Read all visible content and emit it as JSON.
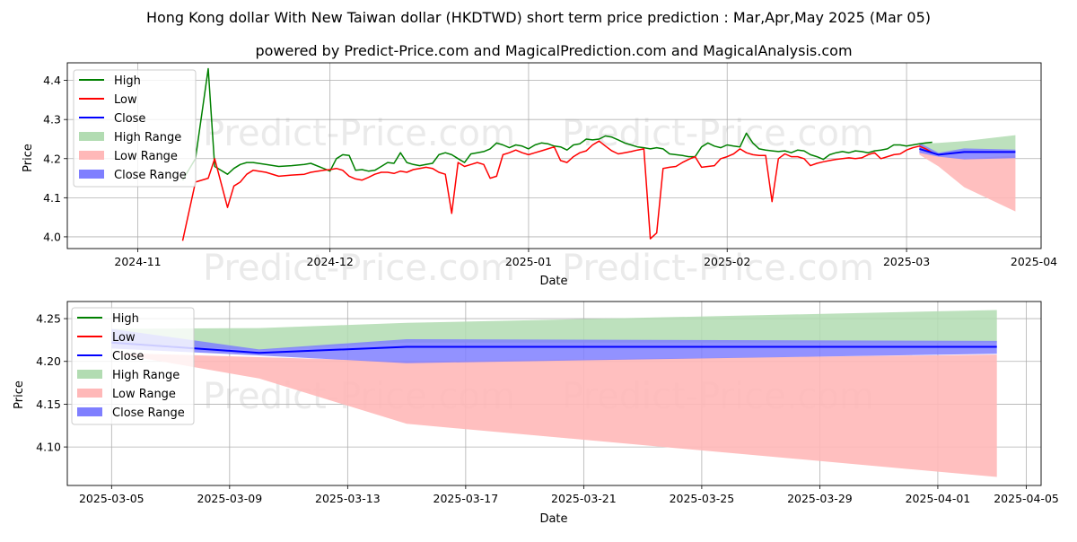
{
  "title": "Hong Kong dollar With New Taiwan dollar (HKDTWD) short term price prediction : Mar,Apr,May 2025 (Mar 05)",
  "subtitle": "powered by Predict-Price.com and MagicalPrediction.com and MagicalAnalysis.com",
  "watermark": "Predict-Price.com",
  "colors": {
    "high": "#008000",
    "low": "#ff0000",
    "close": "#0000ff",
    "high_range": "#b2dcb2",
    "low_range": "#ffb8b8",
    "close_range": "#7f7fff",
    "grid": "#b0b0b0"
  },
  "legend": [
    "High",
    "Low",
    "Close",
    "High Range",
    "Low Range",
    "Close Range"
  ],
  "chart_data": [
    {
      "type": "line",
      "name": "history-chart",
      "xlabel": "Date",
      "ylabel": "Price",
      "xlim": [
        -11,
        141
      ],
      "ylim": [
        3.97,
        4.445
      ],
      "x_ticks": [
        {
          "day": 0,
          "label": "2024-11"
        },
        {
          "day": 30,
          "label": "2024-12"
        },
        {
          "day": 61,
          "label": "2025-01"
        },
        {
          "day": 92,
          "label": "2025-02"
        },
        {
          "day": 120,
          "label": "2025-03"
        },
        {
          "day": 151,
          "label": "2025-04"
        }
      ],
      "y_ticks": [
        4.0,
        4.1,
        4.2,
        4.3,
        4.4
      ],
      "high": {
        "x": [
          7,
          9,
          11,
          12,
          14,
          15,
          16,
          17,
          18,
          20,
          22,
          24,
          26,
          27,
          29,
          30,
          31,
          32,
          33,
          34,
          35,
          36,
          37,
          38,
          39,
          40,
          41,
          42,
          43,
          44,
          45,
          46,
          47,
          48,
          49,
          50,
          51,
          52,
          53,
          54,
          55,
          56,
          57,
          58,
          59,
          60,
          61,
          62,
          63,
          64,
          65,
          66,
          67,
          68,
          69,
          70,
          71,
          72,
          73,
          74,
          75,
          76,
          77,
          78,
          79,
          80,
          81,
          82,
          83,
          84,
          85,
          86,
          87,
          88,
          89,
          90,
          91,
          92,
          93,
          94,
          95,
          96,
          97,
          98,
          99,
          100,
          101,
          102,
          103,
          104,
          105,
          106,
          107,
          108,
          109,
          110,
          111,
          112,
          113,
          114,
          115,
          116,
          117,
          118,
          119,
          120,
          121,
          122,
          123,
          124
        ],
        "y": [
          4.145,
          4.2,
          4.43,
          4.18,
          4.16,
          4.175,
          4.185,
          4.19,
          4.19,
          4.185,
          4.18,
          4.182,
          4.185,
          4.188,
          4.175,
          4.168,
          4.2,
          4.21,
          4.208,
          4.17,
          4.172,
          4.168,
          4.17,
          4.18,
          4.19,
          4.188,
          4.215,
          4.19,
          4.185,
          4.182,
          4.185,
          4.188,
          4.21,
          4.215,
          4.21,
          4.2,
          4.19,
          4.212,
          4.215,
          4.218,
          4.225,
          4.24,
          4.235,
          4.228,
          4.235,
          4.232,
          4.225,
          4.235,
          4.24,
          4.238,
          4.232,
          4.23,
          4.222,
          4.235,
          4.238,
          4.25,
          4.248,
          4.25,
          4.258,
          4.255,
          4.248,
          4.24,
          4.235,
          4.23,
          4.228,
          4.225,
          4.228,
          4.225,
          4.212,
          4.21,
          4.208,
          4.205,
          4.205,
          4.23,
          4.24,
          4.232,
          4.228,
          4.235,
          4.232,
          4.23,
          4.265,
          4.24,
          4.225,
          4.222,
          4.22,
          4.218,
          4.22,
          4.215,
          4.222,
          4.22,
          4.21,
          4.205,
          4.198,
          4.21,
          4.215,
          4.218,
          4.215,
          4.22,
          4.218,
          4.215,
          4.22,
          4.222,
          4.225,
          4.235,
          4.235,
          4.232,
          4.235,
          4.238,
          4.24,
          4.242
        ]
      },
      "low": {
        "x": [
          7,
          9,
          11,
          12,
          14,
          15,
          16,
          17,
          18,
          20,
          22,
          24,
          26,
          27,
          29,
          30,
          31,
          32,
          33,
          34,
          35,
          36,
          37,
          38,
          39,
          40,
          41,
          42,
          43,
          44,
          45,
          46,
          47,
          48,
          49,
          50,
          51,
          52,
          53,
          54,
          55,
          56,
          57,
          58,
          59,
          60,
          61,
          62,
          63,
          64,
          65,
          66,
          67,
          68,
          69,
          70,
          71,
          72,
          73,
          74,
          75,
          76,
          77,
          78,
          79,
          80,
          81,
          82,
          83,
          84,
          85,
          86,
          87,
          88,
          89,
          90,
          91,
          92,
          93,
          94,
          95,
          96,
          97,
          98,
          99,
          100,
          101,
          102,
          103,
          104,
          105,
          106,
          107,
          108,
          109,
          110,
          111,
          112,
          113,
          114,
          115,
          116,
          117,
          118,
          119,
          120,
          121,
          122,
          123,
          124
        ],
        "y": [
          3.99,
          4.14,
          4.15,
          4.2,
          4.075,
          4.13,
          4.14,
          4.16,
          4.17,
          4.165,
          4.155,
          4.158,
          4.16,
          4.165,
          4.17,
          4.172,
          4.175,
          4.17,
          4.155,
          4.148,
          4.145,
          4.152,
          4.16,
          4.165,
          4.165,
          4.162,
          4.168,
          4.165,
          4.172,
          4.175,
          4.178,
          4.175,
          4.165,
          4.16,
          4.06,
          4.19,
          4.18,
          4.185,
          4.19,
          4.185,
          4.15,
          4.155,
          4.21,
          4.215,
          4.222,
          4.215,
          4.21,
          4.215,
          4.22,
          4.225,
          4.23,
          4.195,
          4.19,
          4.205,
          4.215,
          4.22,
          4.235,
          4.245,
          4.232,
          4.22,
          4.212,
          4.215,
          4.218,
          4.222,
          4.225,
          3.995,
          4.01,
          4.175,
          4.178,
          4.18,
          4.19,
          4.198,
          4.205,
          4.178,
          4.18,
          4.182,
          4.2,
          4.205,
          4.212,
          4.225,
          4.215,
          4.21,
          4.208,
          4.208,
          4.09,
          4.2,
          4.212,
          4.205,
          4.205,
          4.2,
          4.182,
          4.188,
          4.192,
          4.195,
          4.198,
          4.2,
          4.202,
          4.2,
          4.202,
          4.21,
          4.215,
          4.2,
          4.205,
          4.21,
          4.212,
          4.222,
          4.228,
          4.232,
          4.225,
          4.215
        ]
      },
      "close": {
        "x": [
          122,
          125,
          129,
          137
        ],
        "y": [
          4.225,
          4.21,
          4.217,
          4.217
        ]
      },
      "high_range": {
        "x": [
          122,
          125,
          129,
          137
        ],
        "upper": [
          4.238,
          4.24,
          4.245,
          4.26
        ],
        "lower": [
          4.225,
          4.212,
          4.22,
          4.222
        ]
      },
      "low_range": {
        "x": [
          122,
          125,
          129,
          137
        ],
        "upper": [
          4.218,
          4.205,
          4.2,
          4.208
        ],
        "lower": [
          4.21,
          4.18,
          4.127,
          4.065
        ]
      },
      "close_range": {
        "x": [
          122,
          125,
          129,
          137
        ],
        "upper": [
          4.24,
          4.215,
          4.226,
          4.223
        ],
        "lower": [
          4.215,
          4.205,
          4.198,
          4.201
        ]
      }
    },
    {
      "type": "line",
      "name": "forecast-chart",
      "xlabel": "Date",
      "ylabel": "Price",
      "xlim": [
        -1.5,
        31.5
      ],
      "ylim": [
        4.055,
        4.27
      ],
      "x_ticks": [
        {
          "day": 0,
          "label": "2025-03-05"
        },
        {
          "day": 4,
          "label": "2025-03-09"
        },
        {
          "day": 8,
          "label": "2025-03-13"
        },
        {
          "day": 12,
          "label": "2025-03-17"
        },
        {
          "day": 16,
          "label": "2025-03-21"
        },
        {
          "day": 20,
          "label": "2025-03-25"
        },
        {
          "day": 24,
          "label": "2025-03-29"
        },
        {
          "day": 28,
          "label": "2025-04-01"
        },
        {
          "day": 31,
          "label": "2025-04-05"
        }
      ],
      "y_ticks": [
        4.1,
        4.15,
        4.2,
        4.25
      ],
      "close": {
        "x": [
          0,
          5,
          10,
          30
        ],
        "y": [
          4.222,
          4.21,
          4.217,
          4.217
        ]
      },
      "high_range": {
        "x": [
          0,
          5,
          10,
          30
        ],
        "upper": [
          4.238,
          4.239,
          4.245,
          4.26
        ],
        "lower": [
          4.222,
          4.213,
          4.222,
          4.222
        ]
      },
      "low_range": {
        "x": [
          0,
          5,
          10,
          30
        ],
        "upper": [
          4.21,
          4.205,
          4.2,
          4.208
        ],
        "lower": [
          4.21,
          4.18,
          4.127,
          4.065
        ]
      },
      "close_range": {
        "x": [
          0,
          5,
          10,
          30
        ],
        "upper": [
          4.238,
          4.214,
          4.226,
          4.224
        ],
        "lower": [
          4.215,
          4.207,
          4.198,
          4.209
        ]
      }
    }
  ]
}
